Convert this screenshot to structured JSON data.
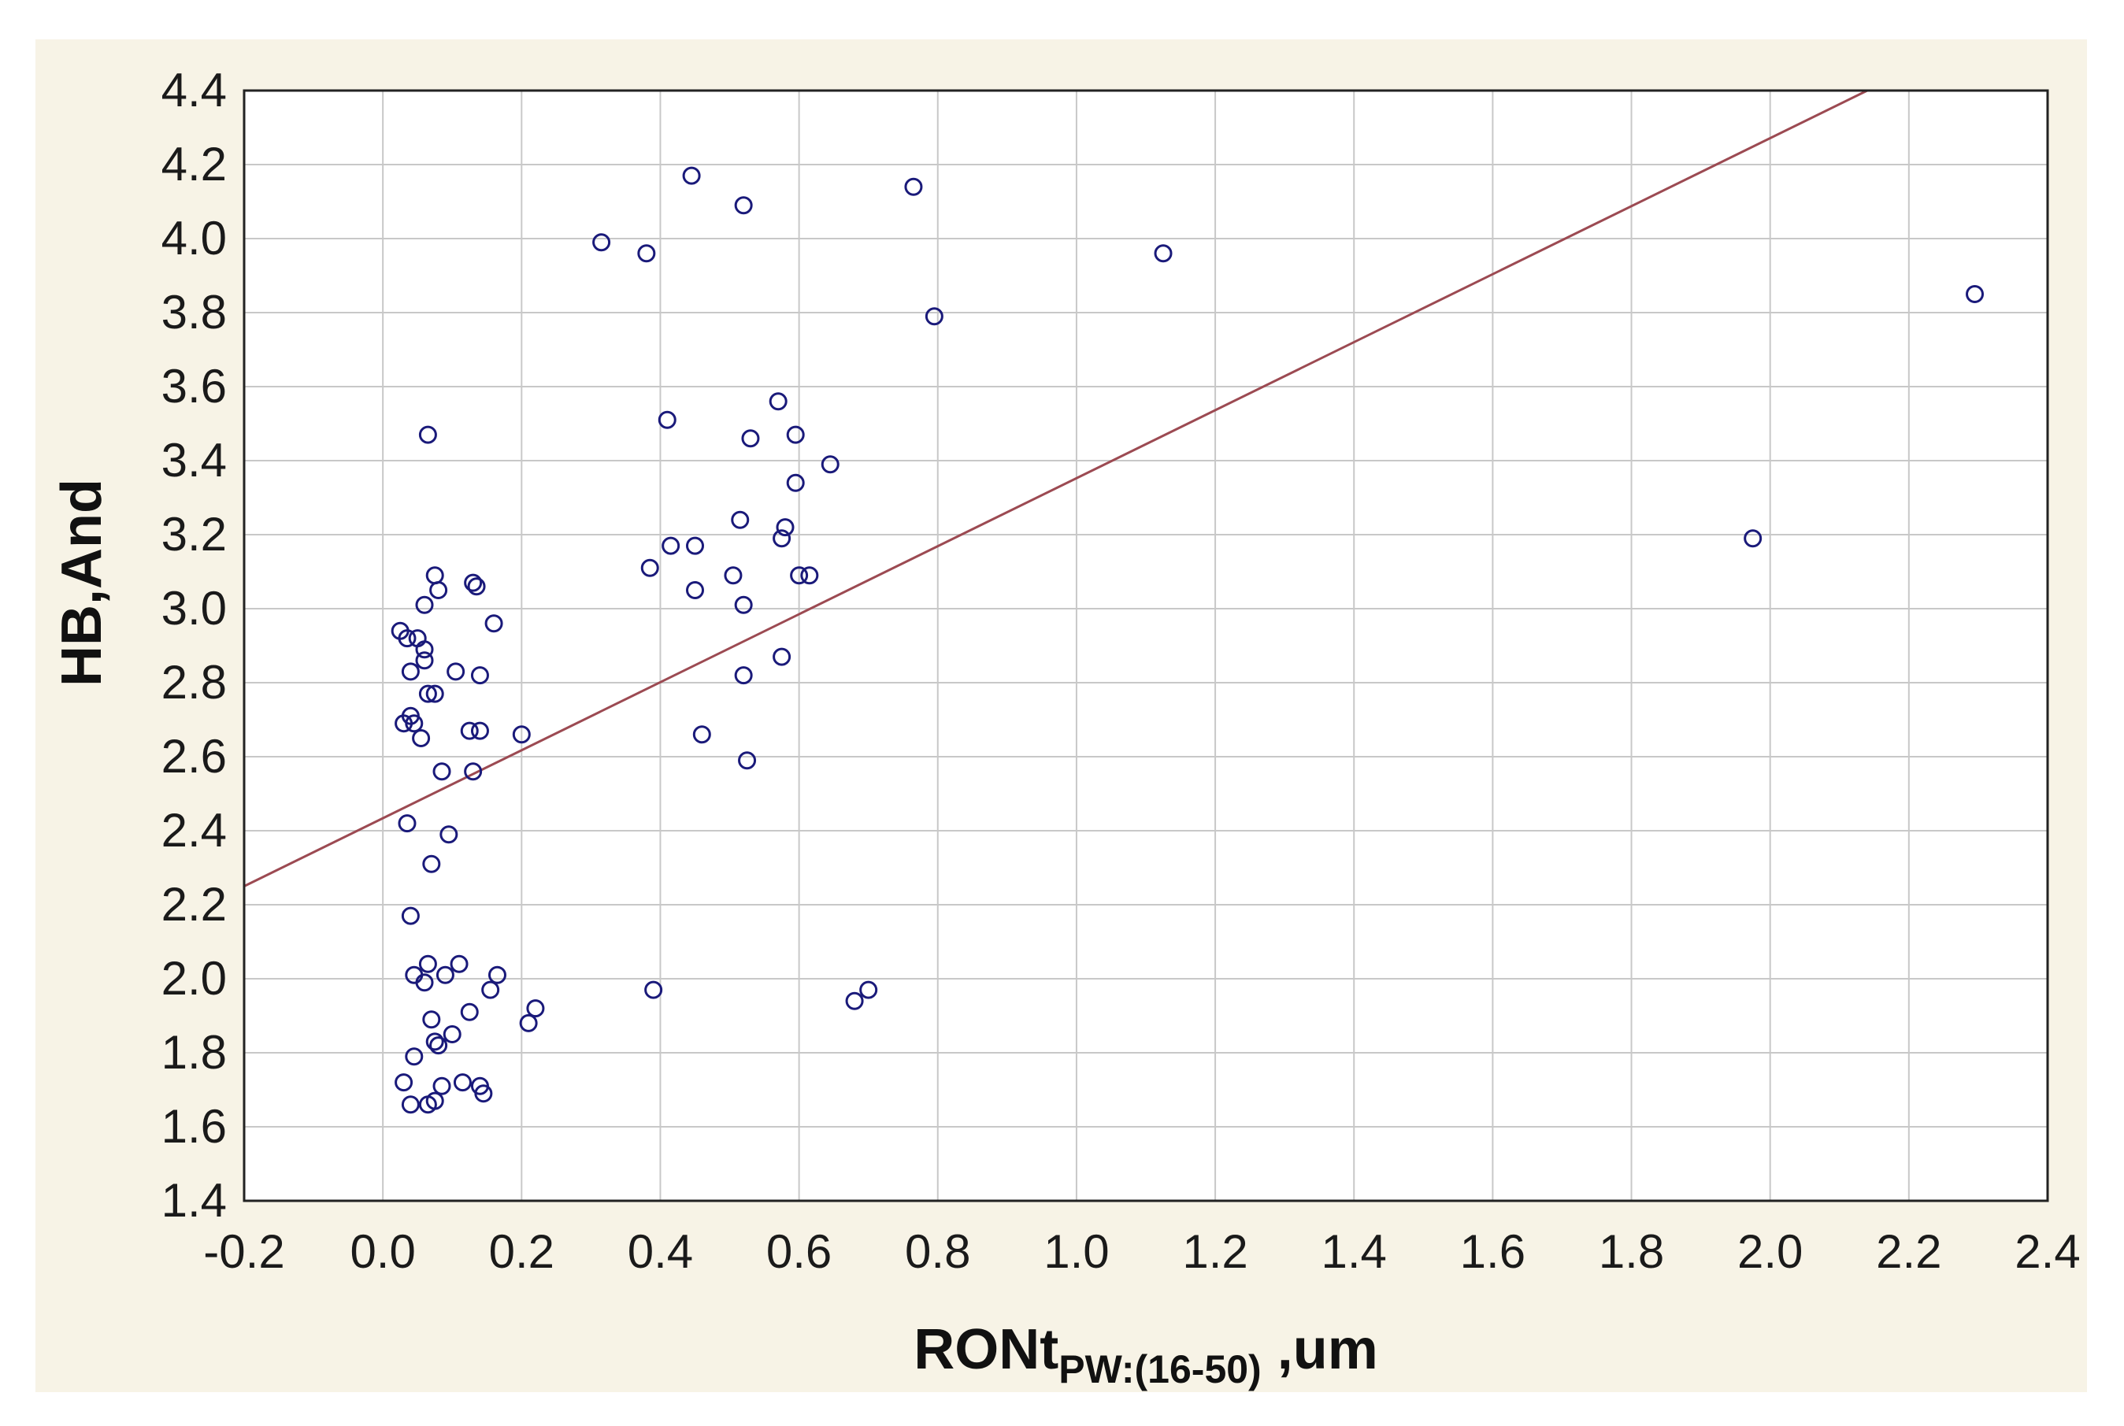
{
  "chart_data": {
    "type": "scatter",
    "title": "",
    "xlabel": "RONt",
    "xlabel_subscript": "PW:(16-50)",
    "xlabel_suffix": " ,um",
    "ylabel": "HB,And",
    "xlim": [
      -0.2,
      2.4
    ],
    "ylim": [
      1.4,
      4.4
    ],
    "xticks": [
      "-0.2",
      "0.0",
      "0.2",
      "0.4",
      "0.6",
      "0.8",
      "1.0",
      "1.2",
      "1.4",
      "1.6",
      "1.8",
      "2.0",
      "2.2",
      "2.4"
    ],
    "yticks": [
      "1.4",
      "1.6",
      "1.8",
      "2.0",
      "2.2",
      "2.4",
      "2.6",
      "2.8",
      "3.0",
      "3.2",
      "3.4",
      "3.6",
      "3.8",
      "4.0",
      "4.2",
      "4.4"
    ],
    "grid": true,
    "background_color": "#f7f3e6",
    "plot_background_color": "#ffffff",
    "marker_color": "#1a1a7a",
    "marker": "open-circle",
    "fit_line": {
      "type": "linear",
      "color": "#9c4a52",
      "x": [
        -0.2,
        2.14
      ],
      "y": [
        2.25,
        4.4
      ]
    },
    "points": [
      {
        "x": 0.445,
        "y": 4.17
      },
      {
        "x": 0.52,
        "y": 4.09
      },
      {
        "x": 0.765,
        "y": 4.14
      },
      {
        "x": 0.315,
        "y": 3.99
      },
      {
        "x": 0.38,
        "y": 3.96
      },
      {
        "x": 1.125,
        "y": 3.96
      },
      {
        "x": 0.795,
        "y": 3.79
      },
      {
        "x": 2.295,
        "y": 3.85
      },
      {
        "x": 0.57,
        "y": 3.56
      },
      {
        "x": 0.41,
        "y": 3.51
      },
      {
        "x": 0.53,
        "y": 3.46
      },
      {
        "x": 0.595,
        "y": 3.47
      },
      {
        "x": 0.065,
        "y": 3.47
      },
      {
        "x": 0.645,
        "y": 3.39
      },
      {
        "x": 0.595,
        "y": 3.34
      },
      {
        "x": 0.515,
        "y": 3.24
      },
      {
        "x": 0.58,
        "y": 3.22
      },
      {
        "x": 0.575,
        "y": 3.19
      },
      {
        "x": 1.975,
        "y": 3.19
      },
      {
        "x": 0.415,
        "y": 3.17
      },
      {
        "x": 0.45,
        "y": 3.17
      },
      {
        "x": 0.385,
        "y": 3.11
      },
      {
        "x": 0.505,
        "y": 3.09
      },
      {
        "x": 0.6,
        "y": 3.09
      },
      {
        "x": 0.615,
        "y": 3.09
      },
      {
        "x": 0.45,
        "y": 3.05
      },
      {
        "x": 0.52,
        "y": 3.01
      },
      {
        "x": 0.075,
        "y": 3.09
      },
      {
        "x": 0.13,
        "y": 3.07
      },
      {
        "x": 0.135,
        "y": 3.06
      },
      {
        "x": 0.08,
        "y": 3.05
      },
      {
        "x": 0.06,
        "y": 3.01
      },
      {
        "x": 0.16,
        "y": 2.96
      },
      {
        "x": 0.025,
        "y": 2.94
      },
      {
        "x": 0.035,
        "y": 2.92
      },
      {
        "x": 0.05,
        "y": 2.92
      },
      {
        "x": 0.06,
        "y": 2.89
      },
      {
        "x": 0.06,
        "y": 2.86
      },
      {
        "x": 0.575,
        "y": 2.87
      },
      {
        "x": 0.04,
        "y": 2.83
      },
      {
        "x": 0.105,
        "y": 2.83
      },
      {
        "x": 0.14,
        "y": 2.82
      },
      {
        "x": 0.52,
        "y": 2.82
      },
      {
        "x": 0.065,
        "y": 2.77
      },
      {
        "x": 0.075,
        "y": 2.77
      },
      {
        "x": 0.03,
        "y": 2.69
      },
      {
        "x": 0.04,
        "y": 2.71
      },
      {
        "x": 0.045,
        "y": 2.69
      },
      {
        "x": 0.055,
        "y": 2.65
      },
      {
        "x": 0.125,
        "y": 2.67
      },
      {
        "x": 0.14,
        "y": 2.67
      },
      {
        "x": 0.2,
        "y": 2.66
      },
      {
        "x": 0.46,
        "y": 2.66
      },
      {
        "x": 0.525,
        "y": 2.59
      },
      {
        "x": 0.085,
        "y": 2.56
      },
      {
        "x": 0.13,
        "y": 2.56
      },
      {
        "x": 0.035,
        "y": 2.42
      },
      {
        "x": 0.095,
        "y": 2.39
      },
      {
        "x": 0.07,
        "y": 2.31
      },
      {
        "x": 0.04,
        "y": 2.17
      },
      {
        "x": 0.045,
        "y": 2.01
      },
      {
        "x": 0.065,
        "y": 2.04
      },
      {
        "x": 0.11,
        "y": 2.04
      },
      {
        "x": 0.06,
        "y": 1.99
      },
      {
        "x": 0.09,
        "y": 2.01
      },
      {
        "x": 0.165,
        "y": 2.01
      },
      {
        "x": 0.155,
        "y": 1.97
      },
      {
        "x": 0.39,
        "y": 1.97
      },
      {
        "x": 0.7,
        "y": 1.97
      },
      {
        "x": 0.68,
        "y": 1.94
      },
      {
        "x": 0.22,
        "y": 1.92
      },
      {
        "x": 0.125,
        "y": 1.91
      },
      {
        "x": 0.07,
        "y": 1.89
      },
      {
        "x": 0.21,
        "y": 1.88
      },
      {
        "x": 0.1,
        "y": 1.85
      },
      {
        "x": 0.075,
        "y": 1.83
      },
      {
        "x": 0.08,
        "y": 1.82
      },
      {
        "x": 0.045,
        "y": 1.79
      },
      {
        "x": 0.03,
        "y": 1.72
      },
      {
        "x": 0.085,
        "y": 1.71
      },
      {
        "x": 0.115,
        "y": 1.72
      },
      {
        "x": 0.14,
        "y": 1.71
      },
      {
        "x": 0.145,
        "y": 1.69
      },
      {
        "x": 0.04,
        "y": 1.66
      },
      {
        "x": 0.065,
        "y": 1.66
      },
      {
        "x": 0.075,
        "y": 1.67
      }
    ]
  }
}
